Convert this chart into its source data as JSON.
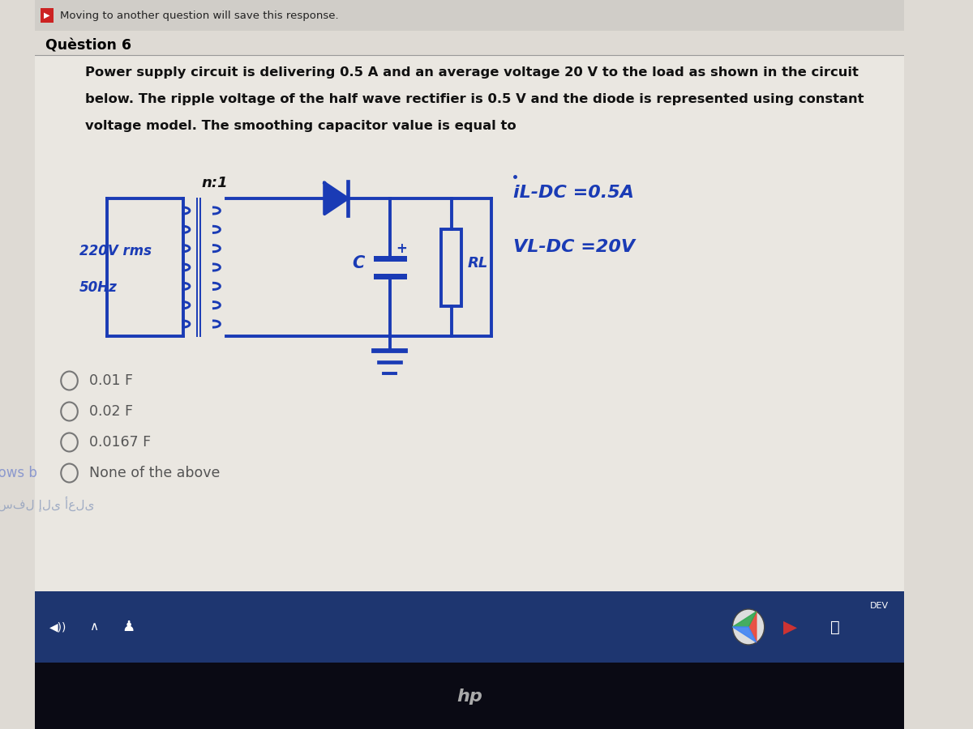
{
  "bg_color": "#dedad4",
  "header_bg": "#d0cdc8",
  "question_bg": "#e8e5df",
  "circuit_ink_color": "#1a3bb5",
  "option_text_color": "#555555",
  "header_color": "#222222",
  "question_label_color": "#000000",
  "taskbar_color": "#1e3670",
  "taskbar_bottom_color": "#0a0a14",
  "options": [
    "0.01 F",
    "0.02 F",
    "0.0167 F",
    "None of the above"
  ],
  "question_text_lines": [
    "Power supply circuit is delivering 0.5 A and an average voltage 20 V to the load as shown in the circuit",
    "below. The ripple voltage of the half wave rectifier is 0.5 V and the diode is represented using constant",
    "voltage model. The smoothing capacitor value is equal to"
  ]
}
